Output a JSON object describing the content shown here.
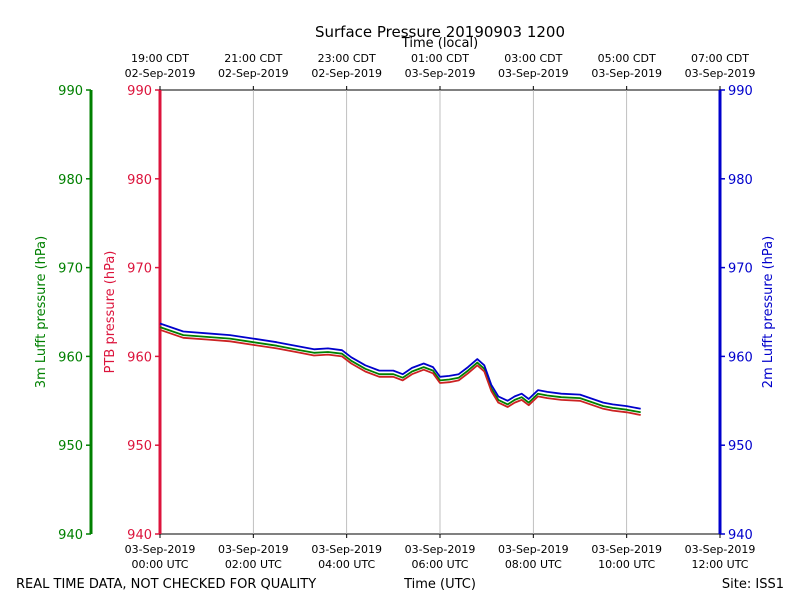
{
  "chart_data": {
    "type": "line",
    "title": "Surface Pressure 20190903 1200",
    "top_axis_label": "Time (local)",
    "x_axis_label": "Time (UTC)",
    "left_outer_ylabel": "3m Lufft pressure (hPa)",
    "left_inner_ylabel": "PTB pressure (hPa)",
    "right_ylabel": "2m Lufft pressure (hPa)",
    "ylim": [
      940,
      990
    ],
    "xlim": [
      0,
      12
    ],
    "y_ticks": [
      "990",
      "980",
      "970",
      "960",
      "950",
      "940"
    ],
    "y_tick_values": [
      990,
      980,
      970,
      960,
      950,
      940
    ],
    "x_tick_values": [
      0,
      2,
      4,
      6,
      8,
      10,
      12
    ],
    "bottom_ticks": [
      {
        "date": "03-Sep-2019",
        "time": "00:00 UTC"
      },
      {
        "date": "03-Sep-2019",
        "time": "02:00 UTC"
      },
      {
        "date": "03-Sep-2019",
        "time": "04:00 UTC"
      },
      {
        "date": "03-Sep-2019",
        "time": "06:00 UTC"
      },
      {
        "date": "03-Sep-2019",
        "time": "08:00 UTC"
      },
      {
        "date": "03-Sep-2019",
        "time": "10:00 UTC"
      },
      {
        "date": "03-Sep-2019",
        "time": "12:00 UTC"
      }
    ],
    "top_ticks": [
      {
        "time": "19:00 CDT",
        "date": "02-Sep-2019"
      },
      {
        "time": "21:00 CDT",
        "date": "02-Sep-2019"
      },
      {
        "time": "23:00 CDT",
        "date": "02-Sep-2019"
      },
      {
        "time": "01:00 CDT",
        "date": "03-Sep-2019"
      },
      {
        "time": "03:00 CDT",
        "date": "03-Sep-2019"
      },
      {
        "time": "05:00 CDT",
        "date": "03-Sep-2019"
      },
      {
        "time": "07:00 CDT",
        "date": "03-Sep-2019"
      }
    ],
    "x": [
      0,
      0.5,
      1,
      1.5,
      2,
      2.5,
      3,
      3.3,
      3.6,
      3.9,
      4.1,
      4.4,
      4.7,
      5.0,
      5.2,
      5.4,
      5.65,
      5.85,
      6.0,
      6.2,
      6.4,
      6.6,
      6.8,
      6.95,
      7.1,
      7.25,
      7.45,
      7.6,
      7.75,
      7.9,
      8.1,
      8.3,
      8.6,
      9.0,
      9.5,
      9.7,
      10.0,
      10.3
    ],
    "series": [
      {
        "name": "3m Lufft pressure",
        "color": "#008000",
        "values": [
          963.3,
          962.4,
          962.2,
          962.0,
          961.6,
          961.2,
          960.7,
          960.4,
          960.5,
          960.3,
          959.5,
          958.6,
          958.0,
          958.0,
          957.6,
          958.3,
          958.8,
          958.4,
          957.3,
          957.4,
          957.6,
          958.4,
          959.3,
          958.6,
          956.4,
          955.1,
          954.6,
          955.1,
          955.4,
          954.8,
          955.8,
          955.6,
          955.4,
          955.3,
          954.4,
          954.2,
          954.0,
          953.7
        ]
      },
      {
        "name": "PTB pressure",
        "color": "#cc2222",
        "values": [
          963.0,
          962.1,
          961.9,
          961.7,
          961.3,
          960.9,
          960.4,
          960.1,
          960.2,
          960.0,
          959.2,
          958.3,
          957.7,
          957.7,
          957.3,
          958.0,
          958.5,
          958.1,
          957.0,
          957.1,
          957.3,
          958.1,
          959.0,
          958.3,
          956.1,
          954.8,
          954.3,
          954.8,
          955.1,
          954.5,
          955.5,
          955.3,
          955.1,
          955.0,
          954.1,
          953.9,
          953.7,
          953.4
        ]
      },
      {
        "name": "2m Lufft pressure",
        "color": "#0000cc",
        "values": [
          963.7,
          962.8,
          962.6,
          962.4,
          962.0,
          961.6,
          961.1,
          960.8,
          960.9,
          960.7,
          959.9,
          959.0,
          958.4,
          958.4,
          958.0,
          958.7,
          959.2,
          958.8,
          957.7,
          957.8,
          958.0,
          958.8,
          959.7,
          959.0,
          956.8,
          955.5,
          955.0,
          955.5,
          955.8,
          955.2,
          956.2,
          956.0,
          955.8,
          955.7,
          954.8,
          954.6,
          954.4,
          954.1
        ]
      }
    ]
  },
  "footer": {
    "quality_note": "REAL TIME DATA, NOT CHECKED FOR QUALITY",
    "site": "Site: ISS1"
  },
  "colors": {
    "left_outer_axis": "#008000",
    "left_inner_axis": "#dc143c",
    "right_axis": "#0000cc"
  }
}
